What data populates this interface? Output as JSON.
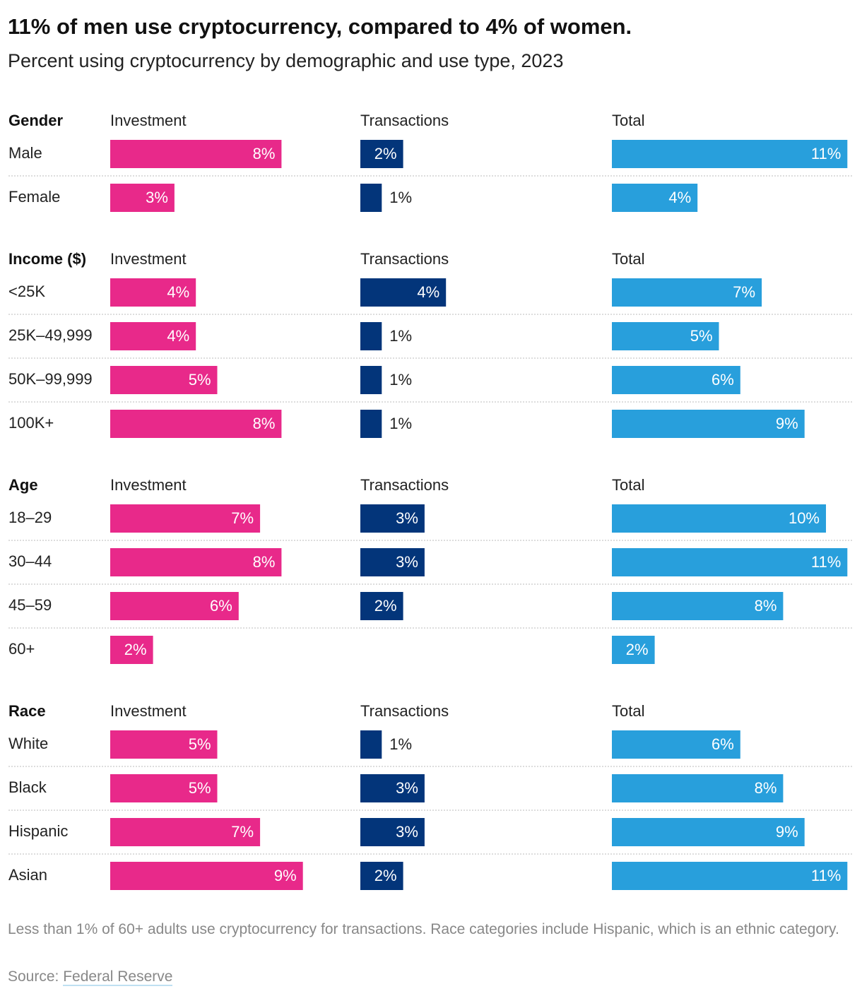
{
  "chart_data": {
    "type": "bar",
    "title": "11% of men use cryptocurrency, compared to 4% of women.",
    "subtitle": "Percent using cryptocurrency by demographic and use type, 2023",
    "groups": [
      {
        "name": "Gender",
        "categories": [
          "Male",
          "Female"
        ],
        "series": [
          {
            "name": "Investment",
            "color": "#e8298a",
            "values": [
              8,
              3
            ],
            "value_labels": [
              "8%",
              "3%"
            ]
          },
          {
            "name": "Transactions",
            "color": "#03357a",
            "values": [
              2,
              1
            ],
            "value_labels": [
              "2%",
              "1%"
            ]
          },
          {
            "name": "Total",
            "color": "#289fdc",
            "values": [
              11,
              4
            ],
            "value_labels": [
              "11%",
              "4%"
            ]
          }
        ]
      },
      {
        "name": "Income ($)",
        "categories": [
          "<25K",
          "25K–49,999",
          "50K–99,999",
          "100K+"
        ],
        "series": [
          {
            "name": "Investment",
            "color": "#e8298a",
            "values": [
              4,
              4,
              5,
              8
            ],
            "value_labels": [
              "4%",
              "4%",
              "5%",
              "8%"
            ]
          },
          {
            "name": "Transactions",
            "color": "#03357a",
            "values": [
              4,
              1,
              1,
              1
            ],
            "value_labels": [
              "4%",
              "1%",
              "1%",
              "1%"
            ]
          },
          {
            "name": "Total",
            "color": "#289fdc",
            "values": [
              7,
              5,
              6,
              9
            ],
            "value_labels": [
              "7%",
              "5%",
              "6%",
              "9%"
            ]
          }
        ]
      },
      {
        "name": "Age",
        "categories": [
          "18–29",
          "30–44",
          "45–59",
          "60+"
        ],
        "series": [
          {
            "name": "Investment",
            "color": "#e8298a",
            "values": [
              7,
              8,
              6,
              2
            ],
            "value_labels": [
              "7%",
              "8%",
              "6%",
              "2%"
            ]
          },
          {
            "name": "Transactions",
            "color": "#03357a",
            "values": [
              3,
              3,
              2,
              null
            ],
            "value_labels": [
              "3%",
              "3%",
              "2%",
              null
            ]
          },
          {
            "name": "Total",
            "color": "#289fdc",
            "values": [
              10,
              11,
              8,
              2
            ],
            "value_labels": [
              "10%",
              "11%",
              "8%",
              "2%"
            ]
          }
        ]
      },
      {
        "name": "Race",
        "categories": [
          "White",
          "Black",
          "Hispanic",
          "Asian"
        ],
        "series": [
          {
            "name": "Investment",
            "color": "#e8298a",
            "values": [
              5,
              5,
              7,
              9
            ],
            "value_labels": [
              "5%",
              "5%",
              "7%",
              "9%"
            ]
          },
          {
            "name": "Transactions",
            "color": "#03357a",
            "values": [
              1,
              3,
              3,
              2
            ],
            "value_labels": [
              "1%",
              "3%",
              "3%",
              "2%"
            ]
          },
          {
            "name": "Total",
            "color": "#289fdc",
            "values": [
              6,
              8,
              9,
              11
            ],
            "value_labels": [
              "6%",
              "8%",
              "9%",
              "11%"
            ]
          }
        ]
      }
    ]
  },
  "notes": "Less than 1% of 60+ adults use cryptocurrency for transactions. Race categories include Hispanic, which is an ethnic category.",
  "source": {
    "label": "Source:",
    "text": "Federal Reserve"
  }
}
